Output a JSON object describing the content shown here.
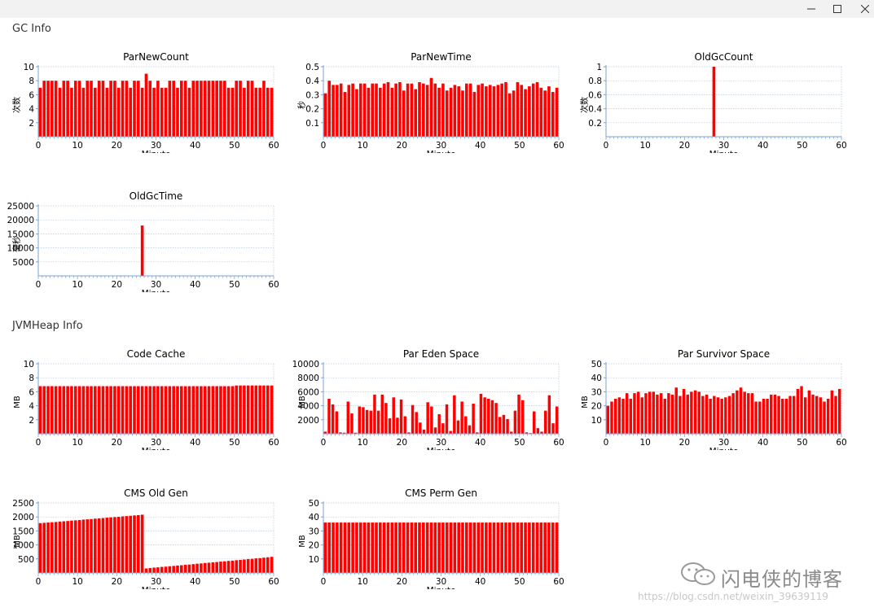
{
  "window": {
    "buttons": [
      "minimize",
      "maximize",
      "close"
    ]
  },
  "sections": {
    "gc": "GC Info",
    "heap": "JVMHeap Info"
  },
  "watermark": {
    "text": "闪电侠的博客",
    "url": "https://blog.csdn.net/weixin_39639119"
  },
  "colors": {
    "bar": "#ff0000",
    "axis": "#7aa6d6",
    "grid": "#b5c8dc",
    "text": "#000000"
  },
  "chart_data": [
    {
      "id": "parnewcount",
      "type": "bar",
      "title": "ParNewCount",
      "xlabel": "Minute",
      "ylabel": "次数",
      "xlim": [
        0,
        60
      ],
      "xticks": [
        0,
        10,
        20,
        30,
        40,
        50,
        60
      ],
      "ylim": [
        0,
        10
      ],
      "yticks": [
        2,
        4,
        6,
        8,
        10
      ],
      "ytick_labels": [
        "2",
        "4",
        "6",
        "8",
        "10"
      ],
      "grid": true,
      "values": [
        7,
        8,
        8,
        8,
        8,
        7,
        8,
        8,
        7,
        8,
        8,
        7,
        8,
        8,
        7,
        8,
        8,
        7,
        8,
        8,
        7,
        8,
        8,
        7,
        8,
        8,
        7,
        9,
        8,
        7,
        8,
        7,
        7,
        8,
        8,
        7,
        8,
        8,
        7,
        8,
        8,
        8,
        8,
        8,
        8,
        8,
        8,
        8,
        7,
        7,
        8,
        8,
        7,
        8,
        8,
        7,
        7,
        8,
        7,
        7
      ]
    },
    {
      "id": "parnewtime",
      "type": "bar",
      "title": "ParNewTime",
      "xlabel": "Minute",
      "ylabel": "秒",
      "xlim": [
        0,
        60
      ],
      "xticks": [
        0,
        10,
        20,
        30,
        40,
        50,
        60
      ],
      "ylim": [
        0,
        0.5
      ],
      "yticks": [
        0.1,
        0.2,
        0.3,
        0.4,
        0.5
      ],
      "ytick_labels": [
        "0.1",
        "0.2",
        "0.3",
        "0.4",
        "0.5"
      ],
      "grid": true,
      "values": [
        0.31,
        0.4,
        0.37,
        0.37,
        0.38,
        0.32,
        0.37,
        0.38,
        0.34,
        0.38,
        0.38,
        0.35,
        0.38,
        0.38,
        0.35,
        0.38,
        0.39,
        0.35,
        0.38,
        0.39,
        0.33,
        0.38,
        0.38,
        0.34,
        0.39,
        0.38,
        0.37,
        0.42,
        0.38,
        0.35,
        0.38,
        0.33,
        0.35,
        0.37,
        0.36,
        0.33,
        0.38,
        0.38,
        0.32,
        0.37,
        0.38,
        0.36,
        0.37,
        0.36,
        0.37,
        0.38,
        0.39,
        0.31,
        0.33,
        0.39,
        0.37,
        0.34,
        0.36,
        0.38,
        0.39,
        0.35,
        0.33,
        0.36,
        0.32,
        0.35
      ]
    },
    {
      "id": "oldgccount",
      "type": "bar",
      "title": "OldGcCount",
      "xlabel": "Minute",
      "ylabel": "次数",
      "xlim": [
        0,
        60
      ],
      "xticks": [
        0,
        10,
        20,
        30,
        40,
        50,
        60
      ],
      "ylim": [
        0,
        1
      ],
      "yticks": [
        0.2,
        0.4,
        0.6,
        0.8,
        1
      ],
      "ytick_labels": [
        "0.2",
        "0.4",
        "0.6",
        "0.8",
        "1"
      ],
      "grid": true,
      "values": [
        0,
        0,
        0,
        0,
        0,
        0,
        0,
        0,
        0,
        0,
        0,
        0,
        0,
        0,
        0,
        0,
        0,
        0,
        0,
        0,
        0,
        0,
        0,
        0,
        0,
        0,
        0,
        1,
        0,
        0,
        0,
        0,
        0,
        0,
        0,
        0,
        0,
        0,
        0,
        0,
        0,
        0,
        0,
        0,
        0,
        0,
        0,
        0,
        0,
        0,
        0,
        0,
        0,
        0,
        0,
        0,
        0,
        0,
        0,
        0
      ]
    },
    {
      "id": "oldgctime",
      "type": "bar",
      "title": "OldGcTime",
      "xlabel": "Minute",
      "ylabel": "毫秒",
      "xlim": [
        0,
        60
      ],
      "xticks": [
        0,
        10,
        20,
        30,
        40,
        50,
        60
      ],
      "ylim": [
        0,
        25000
      ],
      "yticks": [
        5000,
        10000,
        15000,
        20000,
        25000
      ],
      "ytick_labels": [
        "5000",
        "10000",
        "15000",
        "20000",
        "25000"
      ],
      "grid": true,
      "values": [
        0,
        0,
        0,
        0,
        0,
        0,
        0,
        0,
        0,
        0,
        0,
        0,
        0,
        0,
        0,
        0,
        0,
        0,
        0,
        0,
        0,
        0,
        0,
        0,
        0,
        0,
        18000,
        0,
        0,
        0,
        0,
        0,
        0,
        0,
        0,
        0,
        0,
        0,
        0,
        0,
        0,
        0,
        0,
        0,
        0,
        0,
        0,
        0,
        0,
        0,
        0,
        0,
        0,
        0,
        0,
        0,
        0,
        0,
        0,
        0
      ]
    },
    {
      "id": "codecache",
      "type": "bar",
      "title": "Code Cache",
      "xlabel": "Minute",
      "ylabel": "MB",
      "xlim": [
        0,
        60
      ],
      "xticks": [
        0,
        10,
        20,
        30,
        40,
        50,
        60
      ],
      "ylim": [
        0,
        10
      ],
      "yticks": [
        2,
        4,
        6,
        8,
        10
      ],
      "ytick_labels": [
        "2",
        "4",
        "6",
        "8",
        "10"
      ],
      "grid": true,
      "values": [
        6.8,
        6.8,
        6.8,
        6.8,
        6.8,
        6.8,
        6.8,
        6.8,
        6.8,
        6.8,
        6.8,
        6.8,
        6.8,
        6.8,
        6.8,
        6.8,
        6.8,
        6.8,
        6.8,
        6.8,
        6.8,
        6.8,
        6.8,
        6.8,
        6.8,
        6.8,
        6.8,
        6.8,
        6.8,
        6.8,
        6.8,
        6.8,
        6.8,
        6.8,
        6.8,
        6.8,
        6.8,
        6.8,
        6.8,
        6.8,
        6.8,
        6.8,
        6.8,
        6.8,
        6.8,
        6.8,
        6.8,
        6.8,
        6.8,
        6.8,
        6.9,
        6.9,
        6.9,
        6.9,
        6.9,
        6.9,
        6.9,
        6.9,
        6.9,
        6.9
      ]
    },
    {
      "id": "pareden",
      "type": "bar",
      "title": "Par Eden Space",
      "xlabel": "Minute",
      "ylabel": "MB",
      "xlim": [
        0,
        60
      ],
      "xticks": [
        0,
        10,
        20,
        30,
        40,
        50,
        60
      ],
      "ylim": [
        0,
        10000
      ],
      "yticks": [
        2000,
        4000,
        6000,
        8000,
        10000
      ],
      "ytick_labels": [
        "2000",
        "4000",
        "6000",
        "8000",
        "10000"
      ],
      "grid": true,
      "values": [
        300,
        5000,
        4200,
        3200,
        200,
        150,
        4600,
        2900,
        150,
        3900,
        3800,
        3400,
        3300,
        5600,
        3300,
        5600,
        4400,
        2200,
        5200,
        2300,
        4900,
        2500,
        200,
        4100,
        3100,
        1600,
        600,
        4500,
        3900,
        900,
        2800,
        1500,
        4200,
        400,
        5500,
        1900,
        4600,
        2500,
        1200,
        4300,
        200,
        5700,
        5200,
        5000,
        4800,
        4400,
        2400,
        2700,
        2100,
        300,
        3300,
        5600,
        4800,
        200,
        100,
        3200,
        800,
        300,
        3300,
        5500,
        1500,
        3900
      ]
    },
    {
      "id": "parsurvivor",
      "type": "bar",
      "title": "Par Survivor Space",
      "xlabel": "Minute",
      "ylabel": "MB",
      "xlim": [
        0,
        60
      ],
      "xticks": [
        0,
        10,
        20,
        30,
        40,
        50,
        60
      ],
      "ylim": [
        0,
        50
      ],
      "yticks": [
        10,
        20,
        30,
        40,
        50
      ],
      "ytick_labels": [
        "10",
        "20",
        "30",
        "40",
        "50"
      ],
      "grid": true,
      "values": [
        20,
        23,
        25,
        26,
        25,
        29,
        25,
        29,
        30,
        26,
        29,
        30,
        30,
        28,
        29,
        25,
        29,
        28,
        33,
        27,
        32,
        28,
        30,
        31,
        30,
        27,
        28,
        25,
        27,
        26,
        25,
        26,
        27,
        29,
        31,
        33,
        30,
        29,
        29,
        23,
        23,
        25,
        25,
        28,
        28,
        27,
        25,
        25,
        27,
        27,
        32,
        34,
        26,
        31,
        28,
        27,
        26,
        23,
        25,
        31,
        27,
        32
      ]
    },
    {
      "id": "cmsoldgen",
      "type": "bar",
      "title": "CMS Old Gen",
      "xlabel": "Minute",
      "ylabel": "MB",
      "xlim": [
        0,
        60
      ],
      "xticks": [
        0,
        10,
        20,
        30,
        40,
        50,
        60
      ],
      "ylim": [
        0,
        2500
      ],
      "yticks": [
        500,
        1000,
        1500,
        2000,
        2500
      ],
      "ytick_labels": [
        "500",
        "1000",
        "1500",
        "2000",
        "2500"
      ],
      "grid": true,
      "values": [
        1780,
        1790,
        1800,
        1810,
        1820,
        1835,
        1845,
        1855,
        1870,
        1880,
        1890,
        1905,
        1915,
        1925,
        1940,
        1950,
        1960,
        1975,
        1985,
        1995,
        2005,
        2020,
        2030,
        2040,
        2055,
        2065,
        2080,
        160,
        175,
        190,
        200,
        215,
        225,
        240,
        250,
        265,
        275,
        290,
        300,
        315,
        330,
        340,
        355,
        365,
        380,
        390,
        405,
        415,
        430,
        440,
        455,
        465,
        480,
        495,
        505,
        520,
        530,
        545,
        560,
        575
      ]
    },
    {
      "id": "cmspermgen",
      "type": "bar",
      "title": "CMS Perm Gen",
      "xlabel": "Minute",
      "ylabel": "MB",
      "xlim": [
        0,
        60
      ],
      "xticks": [
        0,
        10,
        20,
        30,
        40,
        50,
        60
      ],
      "ylim": [
        0,
        50
      ],
      "yticks": [
        10,
        20,
        30,
        40,
        50
      ],
      "ytick_labels": [
        "10",
        "20",
        "30",
        "40",
        "50"
      ],
      "grid": true,
      "values": [
        36,
        36,
        36,
        36,
        36,
        36,
        36,
        36,
        36,
        36,
        36,
        36,
        36,
        36,
        36,
        36,
        36,
        36,
        36,
        36,
        36,
        36,
        36,
        36,
        36,
        36,
        36,
        36,
        36,
        36,
        36,
        36,
        36,
        36,
        36,
        36,
        36,
        36,
        36,
        36,
        36,
        36,
        36,
        36,
        36,
        36,
        36,
        36,
        36,
        36,
        36,
        36,
        36,
        36,
        36,
        36,
        36,
        36,
        36,
        36
      ]
    }
  ]
}
